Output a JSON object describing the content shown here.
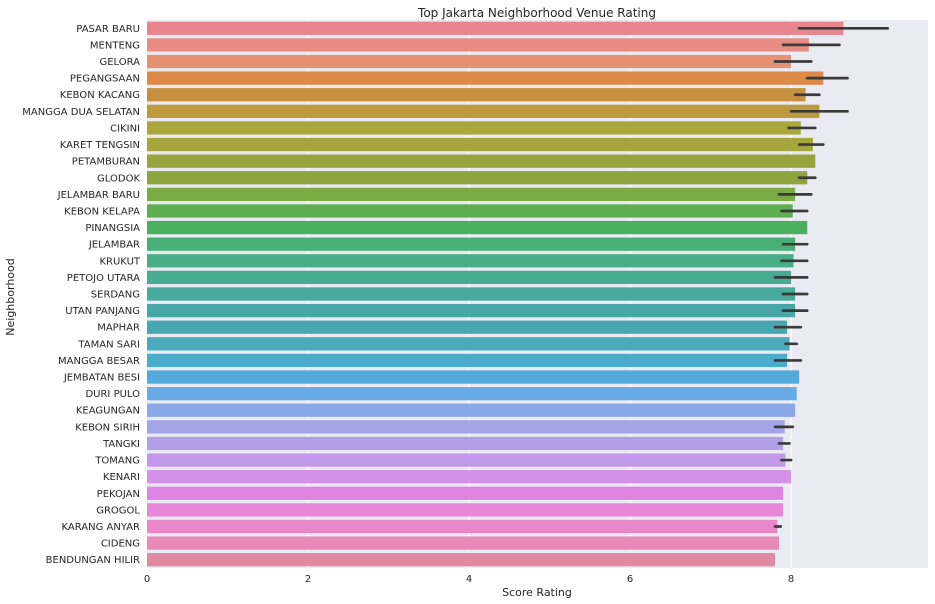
{
  "chart_data": {
    "type": "bar",
    "orientation": "horizontal",
    "title": "Top Jakarta Neighborhood Venue Rating",
    "xlabel": "Score Rating",
    "ylabel": "Neighborhood",
    "xlim": [
      0,
      9.7
    ],
    "xticks": [
      "0",
      "2",
      "4",
      "6",
      "8"
    ],
    "grid": true,
    "background": "#eaeaf2",
    "errorbar_color": "#3a3a3a",
    "categories": [
      "PASAR BARU",
      "MENTENG",
      "GELORA",
      "PEGANGSAAN",
      "KEBON KACANG",
      "MANGGA DUA SELATAN",
      "CIKINI",
      "KARET TENGSIN",
      "PETAMBURAN",
      "GLODOK",
      "JELAMBAR BARU",
      "KEBON KELAPA",
      "PINANGSIA",
      "JELAMBAR",
      "KRUKUT",
      "PETOJO UTARA",
      "SERDANG",
      "UTAN PANJANG",
      "MAPHAR",
      "TAMAN SARI",
      "MANGGA BESAR",
      "JEMBATAN BESI",
      "DURI PULO",
      "KEAGUNGAN",
      "KEBON SIRIH",
      "TANGKI",
      "TOMANG",
      "KENARI",
      "PEKOJAN",
      "GROGOL",
      "KARANG ANYAR",
      "CIDENG",
      "BENDUNGAN HILIR"
    ],
    "values": [
      8.65,
      8.22,
      8.0,
      8.4,
      8.18,
      8.35,
      8.12,
      8.27,
      8.3,
      8.2,
      8.05,
      8.02,
      8.2,
      8.05,
      8.03,
      8.0,
      8.05,
      8.05,
      7.95,
      7.98,
      7.95,
      8.1,
      8.07,
      8.05,
      7.92,
      7.9,
      7.93,
      8.0,
      7.9,
      7.9,
      7.83,
      7.85,
      7.8
    ],
    "errors": [
      [
        8.1,
        9.2
      ],
      [
        7.9,
        8.6
      ],
      [
        7.8,
        8.25
      ],
      [
        8.2,
        8.7
      ],
      [
        8.05,
        8.35
      ],
      [
        8.0,
        8.7
      ],
      [
        7.97,
        8.3
      ],
      [
        8.1,
        8.4
      ],
      null,
      [
        8.1,
        8.3
      ],
      [
        7.85,
        8.25
      ],
      [
        7.88,
        8.2
      ],
      null,
      [
        7.9,
        8.2
      ],
      [
        7.88,
        8.2
      ],
      [
        7.8,
        8.2
      ],
      [
        7.9,
        8.2
      ],
      [
        7.9,
        8.2
      ],
      [
        7.8,
        8.12
      ],
      [
        7.93,
        8.07
      ],
      [
        7.8,
        8.12
      ],
      null,
      null,
      null,
      [
        7.8,
        8.02
      ],
      [
        7.85,
        7.98
      ],
      [
        7.88,
        8.0
      ],
      null,
      null,
      null,
      [
        7.8,
        7.87
      ],
      null,
      null
    ],
    "colors": [
      "#e8868e",
      "#e88d84",
      "#e59274",
      "#dd8a48",
      "#c6913f",
      "#bd9a3e",
      "#ada63d",
      "#a6a63e",
      "#9aa43e",
      "#8da53e",
      "#7aaa43",
      "#5fae4f",
      "#4bb05d",
      "#48b074",
      "#49ae87",
      "#47ab92",
      "#47aa9c",
      "#47a7a6",
      "#48a6b0",
      "#4aa9bb",
      "#4babca",
      "#53aad9",
      "#6aaae4",
      "#8aa9e8",
      "#a3a4e8",
      "#b29ee9",
      "#c498e9",
      "#d392e8",
      "#e084e4",
      "#e887d9",
      "#e888c8",
      "#e78ab7",
      "#e28aa3"
    ]
  }
}
